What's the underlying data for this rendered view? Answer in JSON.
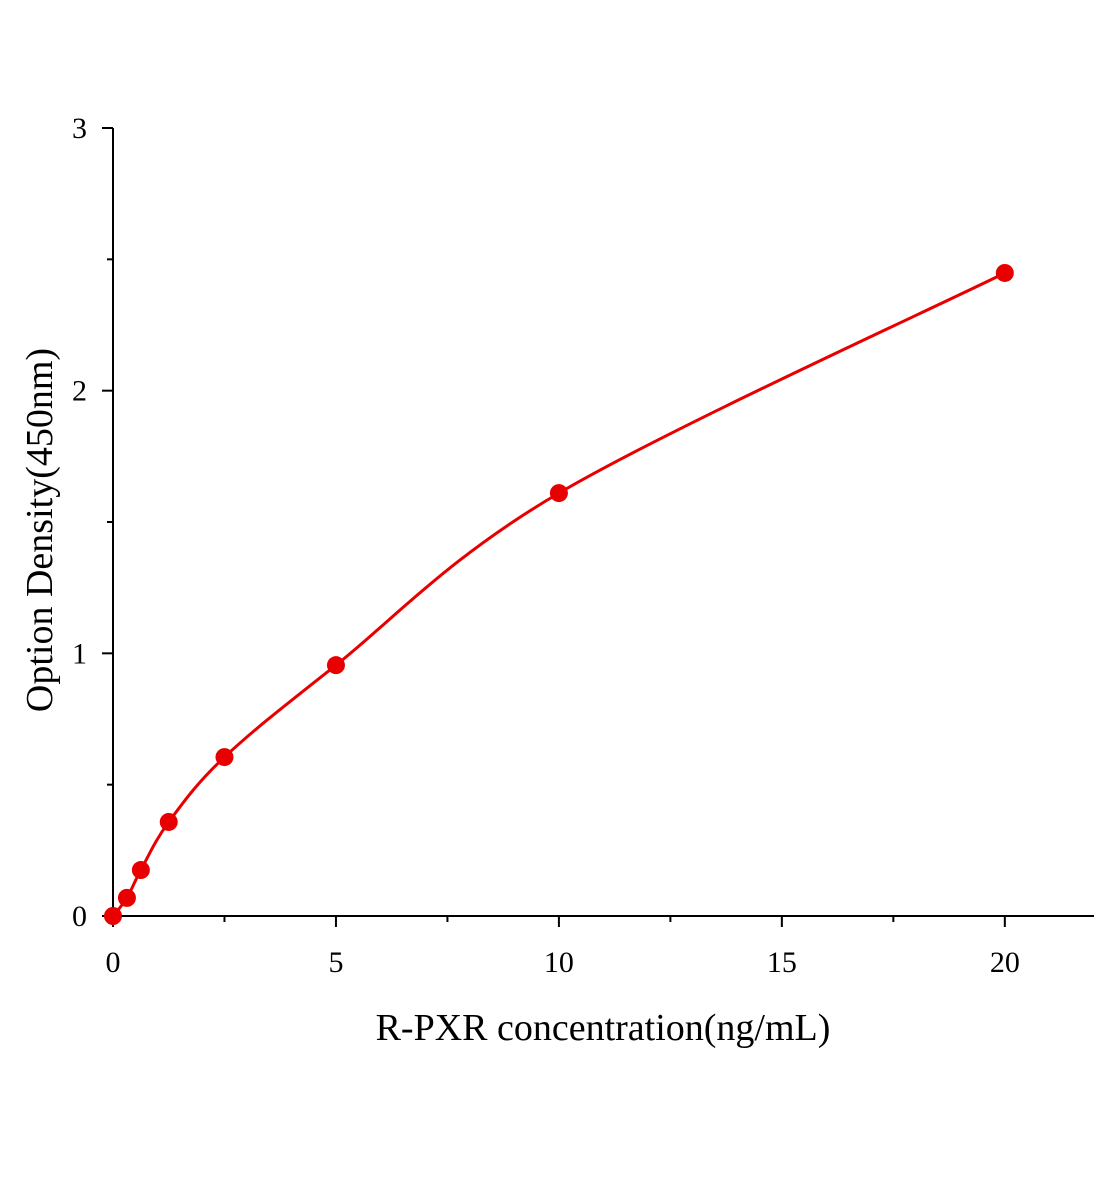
{
  "chart_data": {
    "type": "scatter",
    "x_label": "R-PXR concentration(ng/mL)",
    "y_label": "Option Density(450nm)",
    "series": [
      {
        "color": "#e80000",
        "x": [
          0,
          0.3125,
          0.625,
          1.25,
          2.5,
          5,
          10,
          20
        ],
        "values": [
          0,
          0.069,
          0.175,
          0.358,
          0.605,
          0.955,
          1.61,
          2.448
        ]
      }
    ],
    "fit_curve": true,
    "xlim": [
      0,
      22
    ],
    "xticks": [
      0,
      5,
      10,
      15,
      20
    ],
    "xminor_ticks": [
      2.5,
      7.5,
      12.5,
      17.5
    ],
    "ylim": [
      0,
      3
    ],
    "yticks": [
      0,
      1,
      2,
      3
    ],
    "yminor_ticks": [
      0.5,
      1.5,
      2.5
    ]
  }
}
